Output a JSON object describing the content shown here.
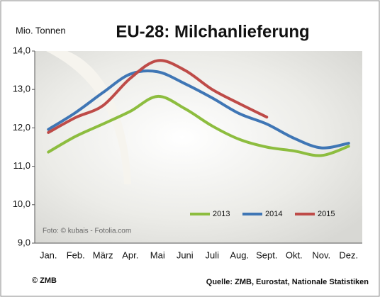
{
  "chart_data": {
    "type": "line",
    "title": "EU-28: Milchanlieferung",
    "y_label": "Mio. Tonnen",
    "categories": [
      "Jan.",
      "Feb.",
      "März",
      "Apr.",
      "Mai",
      "Juni",
      "Juli",
      "Aug.",
      "Sept.",
      "Okt.",
      "Nov.",
      "Dez."
    ],
    "series": [
      {
        "name": "2013",
        "color": "#8dbd3f",
        "values": [
          11.37,
          11.78,
          12.1,
          12.43,
          12.82,
          12.5,
          12.05,
          11.7,
          11.5,
          11.4,
          11.28,
          11.52
        ]
      },
      {
        "name": "2014",
        "color": "#3f76b5",
        "values": [
          11.96,
          12.4,
          12.92,
          13.4,
          13.46,
          13.15,
          12.78,
          12.37,
          12.1,
          11.73,
          11.48,
          11.6
        ]
      },
      {
        "name": "2015",
        "color": "#be4b48",
        "values": [
          11.88,
          12.27,
          12.58,
          13.29,
          13.75,
          13.5,
          13.0,
          12.63,
          12.28,
          null,
          null,
          null
        ]
      }
    ],
    "ylim": [
      9,
      14
    ],
    "yticks": [
      {
        "value": 9,
        "label": "9,0"
      },
      {
        "value": 10,
        "label": "10,0"
      },
      {
        "value": 11,
        "label": "11,0"
      },
      {
        "value": 12,
        "label": "12,0"
      },
      {
        "value": 13,
        "label": "13,0"
      },
      {
        "value": 14,
        "label": "14,0"
      }
    ],
    "legend": "lower right",
    "annotations": [
      "Foto: © kubais - Fotolia.com",
      "© ZMB",
      "Quelle: ZMB, Eurostat,  Nationale Statistiken"
    ]
  }
}
